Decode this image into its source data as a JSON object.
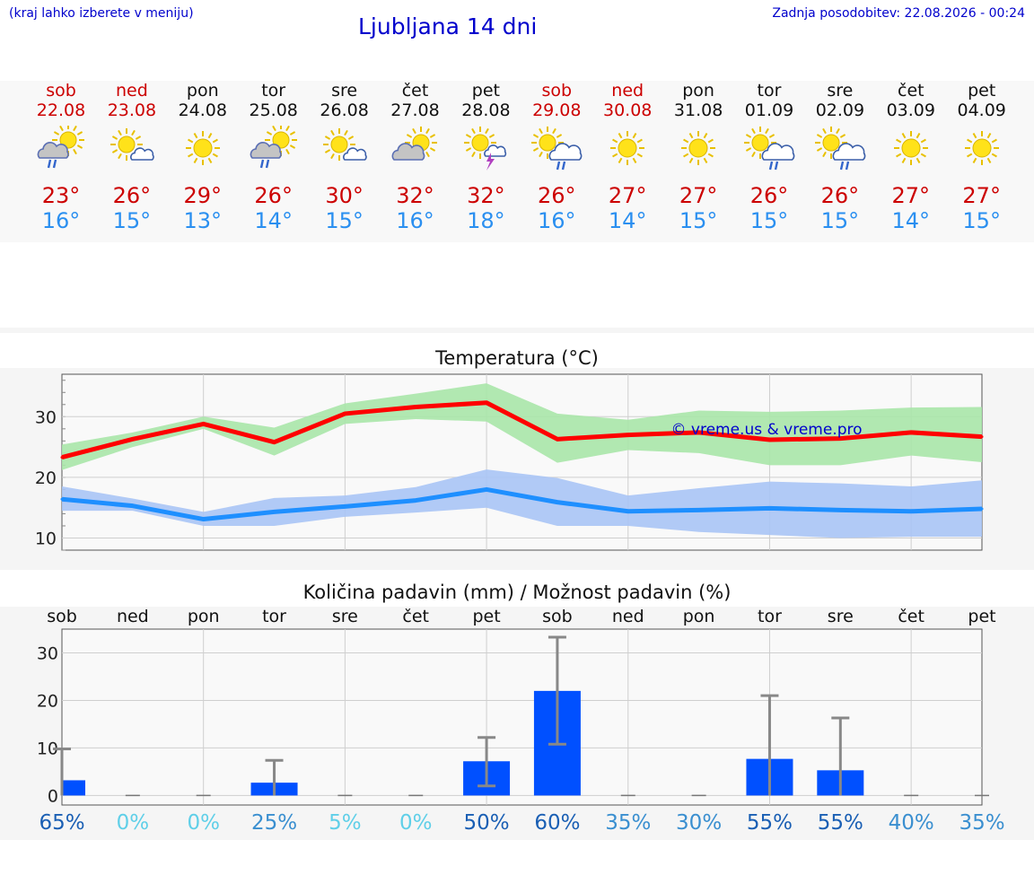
{
  "header": {
    "hint": "(kraj lahko izberete v meniju)",
    "title": "Ljubljana 14 dni",
    "updated": "Zadnja posodobitev: 22.08.2026 - 00:24"
  },
  "colors": {
    "max_line": "#ff0000",
    "max_band": "#a8e6a8",
    "min_line": "#1e8fff",
    "min_band": "#a8c4f5",
    "bar": "#0050ff",
    "error_bar": "#888888",
    "weekend": "#cc0000"
  },
  "days": [
    {
      "name": "sob",
      "date": "22.08",
      "weekend": true,
      "icon": "partly-cloudy-rain-icon",
      "max": "23°",
      "min": "16°",
      "prob": "65%"
    },
    {
      "name": "ned",
      "date": "23.08",
      "weekend": true,
      "icon": "sun-small-cloud-icon",
      "max": "26°",
      "min": "15°",
      "prob": "0%"
    },
    {
      "name": "pon",
      "date": "24.08",
      "weekend": false,
      "icon": "sun-icon",
      "max": "29°",
      "min": "13°",
      "prob": "0%"
    },
    {
      "name": "tor",
      "date": "25.08",
      "weekend": false,
      "icon": "partly-cloudy-rain-icon",
      "max": "26°",
      "min": "14°",
      "prob": "25%"
    },
    {
      "name": "sre",
      "date": "26.08",
      "weekend": false,
      "icon": "sun-small-cloud-icon",
      "max": "30°",
      "min": "15°",
      "prob": "5%"
    },
    {
      "name": "čet",
      "date": "27.08",
      "weekend": false,
      "icon": "partly-cloudy-icon",
      "max": "32°",
      "min": "16°",
      "prob": "0%"
    },
    {
      "name": "pet",
      "date": "28.08",
      "weekend": false,
      "icon": "sun-thunder-icon",
      "max": "32°",
      "min": "18°",
      "prob": "50%"
    },
    {
      "name": "sob",
      "date": "29.08",
      "weekend": true,
      "icon": "sun-cloud-rain-icon",
      "max": "26°",
      "min": "16°",
      "prob": "60%"
    },
    {
      "name": "ned",
      "date": "30.08",
      "weekend": true,
      "icon": "sun-icon",
      "max": "27°",
      "min": "14°",
      "prob": "35%"
    },
    {
      "name": "pon",
      "date": "31.08",
      "weekend": false,
      "icon": "sun-icon",
      "max": "27°",
      "min": "15°",
      "prob": "30%"
    },
    {
      "name": "tor",
      "date": "01.09",
      "weekend": false,
      "icon": "sun-cloud-rain-icon",
      "max": "26°",
      "min": "15°",
      "prob": "55%"
    },
    {
      "name": "sre",
      "date": "02.09",
      "weekend": false,
      "icon": "sun-cloud-rain-icon",
      "max": "26°",
      "min": "15°",
      "prob": "55%"
    },
    {
      "name": "čet",
      "date": "03.09",
      "weekend": false,
      "icon": "sun-icon",
      "max": "27°",
      "min": "14°",
      "prob": "40%"
    },
    {
      "name": "pet",
      "date": "04.09",
      "weekend": false,
      "icon": "sun-icon",
      "max": "27°",
      "min": "15°",
      "prob": "35%"
    }
  ],
  "chart_data": [
    {
      "type": "line",
      "title": "Temperatura (°C)",
      "watermark": "© vreme.us & vreme.pro",
      "ylim": [
        8,
        37
      ],
      "yticks": [
        "10",
        "20",
        "30"
      ],
      "yticks_values": [
        10,
        20,
        30
      ],
      "grid": true,
      "series": [
        {
          "role": "max",
          "values": [
            23.3,
            26.3,
            28.8,
            25.8,
            30.5,
            31.6,
            32.3,
            26.3,
            27.0,
            27.4,
            26.2,
            26.4,
            27.4,
            26.7
          ],
          "band_low": [
            21.2,
            25.0,
            28.0,
            23.6,
            28.8,
            29.6,
            29.2,
            22.4,
            24.5,
            24.0,
            22.0,
            22.0,
            23.6,
            22.5
          ],
          "band_high": [
            25.4,
            27.4,
            30.0,
            28.2,
            32.2,
            33.8,
            35.5,
            30.5,
            29.5,
            31.0,
            30.8,
            31.0,
            31.5,
            31.6
          ]
        },
        {
          "role": "min",
          "values": [
            16.4,
            15.3,
            13.1,
            14.3,
            15.2,
            16.2,
            18.0,
            15.9,
            14.4,
            14.6,
            14.9,
            14.6,
            14.4,
            14.8
          ],
          "band_low": [
            14.5,
            14.5,
            12.0,
            12.0,
            13.5,
            14.2,
            15.0,
            12.0,
            12.0,
            11.0,
            10.5,
            10.0,
            10.2,
            10.2
          ],
          "band_high": [
            18.5,
            16.5,
            14.3,
            16.6,
            17.0,
            18.4,
            21.3,
            19.9,
            17.0,
            18.2,
            19.3,
            19.0,
            18.5,
            19.5
          ]
        }
      ]
    },
    {
      "type": "bar",
      "title": "Količina padavin (mm) / Možnost padavin (%)",
      "categories": [
        "sob",
        "ned",
        "pon",
        "tor",
        "sre",
        "čet",
        "pet",
        "sob",
        "ned",
        "pon",
        "tor",
        "sre",
        "čet",
        "pet"
      ],
      "values": [
        3.2,
        0,
        0,
        2.7,
        0,
        0,
        7.2,
        22.0,
        0,
        0,
        7.7,
        5.3,
        0,
        0
      ],
      "err_low": [
        0,
        0,
        0,
        0,
        0,
        0,
        2.0,
        10.8,
        0,
        0,
        0,
        0,
        0,
        0
      ],
      "err_high": [
        9.8,
        0,
        0,
        7.4,
        0,
        0,
        12.2,
        33.3,
        0,
        0,
        21.0,
        16.3,
        0,
        0
      ],
      "ylim": [
        -2,
        35
      ],
      "yticks": [
        "0",
        "10",
        "20",
        "30"
      ],
      "yticks_values": [
        0,
        10,
        20,
        30
      ],
      "grid": true
    }
  ]
}
